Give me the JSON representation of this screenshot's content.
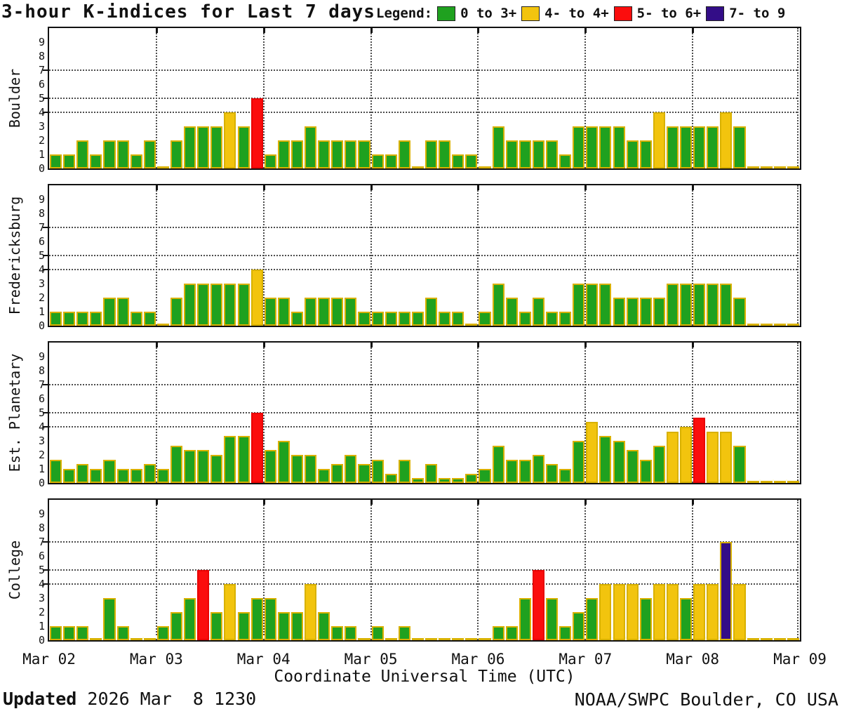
{
  "header": {
    "title": "3-hour K-indices for Last 7 days"
  },
  "legend": {
    "label": "Legend:",
    "items": [
      {
        "label": "0 to 3+",
        "color": "#1fa11f"
      },
      {
        "label": "4- to 4+",
        "color": "#f2c40e"
      },
      {
        "label": "5- to 6+",
        "color": "#fb0d0d"
      },
      {
        "label": "7- to 9",
        "color": "#330d87"
      }
    ]
  },
  "colors": {
    "green": "#1fa11f",
    "yellow": "#f2c40e",
    "red": "#fb0d0d",
    "purple": "#330d87",
    "bar_border": "#d8b100",
    "red_border": "#e80505",
    "grid": "#4d4d4d"
  },
  "x_axis": {
    "title": "Coordinate Universal Time (UTC)",
    "day_labels": [
      "Mar 02",
      "Mar 03",
      "Mar 04",
      "Mar 05",
      "Mar 06",
      "Mar 07",
      "Mar 08",
      "Mar 09"
    ]
  },
  "y_axis": {
    "ticks": [
      0,
      1,
      2,
      3,
      4,
      5,
      6,
      7,
      8,
      9
    ],
    "gridlines": [
      4,
      5,
      7
    ]
  },
  "footer": {
    "updated_label": "Updated",
    "updated_value": " 2026 Mar  8 1230",
    "credit": "NOAA/SWPC Boulder, CO USA"
  },
  "chart_data": {
    "type": "bar",
    "title": "3-hour K-indices for Last 7 days",
    "xlabel": "Coordinate Universal Time (UTC)",
    "ylim": [
      0,
      9
    ],
    "gridlines_y": [
      4,
      5,
      7
    ],
    "bars_per_day": 8,
    "categories": [
      "Mar 02",
      "Mar 03",
      "Mar 04",
      "Mar 05",
      "Mar 06",
      "Mar 07",
      "Mar 08",
      "Mar 09"
    ],
    "color_thresholds": {
      "yellow_min": 3.67,
      "red_min": 4.67,
      "purple_min": 6.67
    },
    "series": [
      {
        "name": "Boulder",
        "values": [
          1,
          1,
          2,
          1,
          2,
          2,
          1,
          2,
          0,
          2,
          3,
          3,
          3,
          4,
          3,
          5,
          1,
          2,
          2,
          3,
          2,
          2,
          2,
          2,
          1,
          1,
          2,
          0,
          2,
          2,
          1,
          1,
          0,
          3,
          2,
          2,
          2,
          2,
          1,
          3,
          3,
          3,
          3,
          2,
          2,
          4,
          3,
          3,
          3,
          3,
          4,
          3,
          0,
          0,
          0,
          0
        ]
      },
      {
        "name": "Fredericksburg",
        "values": [
          1,
          1,
          1,
          1,
          2,
          2,
          1,
          1,
          0,
          2,
          3,
          3,
          3,
          3,
          3,
          4,
          2,
          2,
          1,
          2,
          2,
          2,
          2,
          1,
          1,
          1,
          1,
          1,
          2,
          1,
          1,
          0,
          1,
          3,
          2,
          1,
          2,
          1,
          1,
          3,
          3,
          3,
          2,
          2,
          2,
          2,
          3,
          3,
          3,
          3,
          3,
          2,
          0,
          0,
          0,
          0
        ]
      },
      {
        "name": "Est. Planetary",
        "values": [
          1.67,
          1,
          1.33,
          1,
          1.67,
          1,
          1,
          1.33,
          1,
          2.67,
          2.33,
          2.33,
          2,
          3.33,
          3.33,
          5,
          2.33,
          3,
          2,
          2,
          1,
          1.33,
          2,
          1.33,
          1.67,
          0.67,
          1.67,
          0.33,
          1.33,
          0.33,
          0.33,
          0.67,
          1,
          2.67,
          1.67,
          1.67,
          2,
          1.33,
          1,
          3,
          4.33,
          3.33,
          3,
          2.33,
          1.67,
          2.67,
          3.67,
          4,
          4.67,
          3.67,
          3.67,
          2.67,
          0,
          0,
          0,
          0
        ]
      },
      {
        "name": "College",
        "values": [
          1,
          1,
          1,
          0,
          3,
          1,
          0,
          0,
          1,
          2,
          3,
          5,
          2,
          4,
          2,
          3,
          3,
          2,
          2,
          4,
          2,
          1,
          1,
          0,
          1,
          0,
          1,
          0,
          0,
          0,
          0,
          0,
          0,
          1,
          1,
          3,
          5,
          3,
          1,
          2,
          3,
          4,
          4,
          4,
          3,
          4,
          4,
          3,
          4,
          4,
          7,
          4,
          0,
          0,
          0,
          0
        ]
      }
    ]
  }
}
